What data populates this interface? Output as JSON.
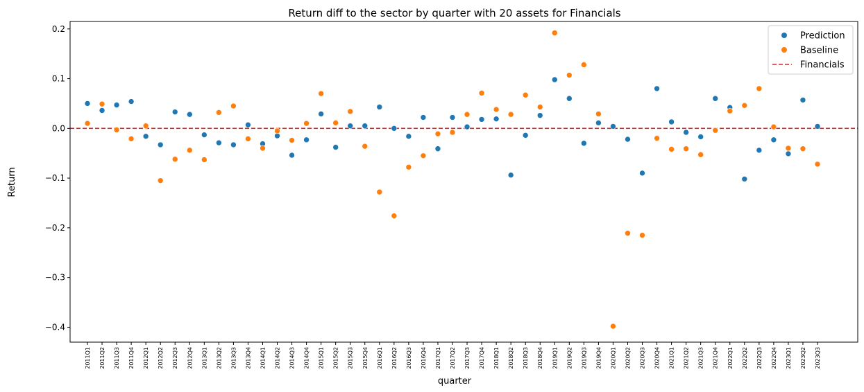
{
  "chart_data": {
    "type": "scatter",
    "title": "Return diff to the sector by quarter with 20 assets for Financials",
    "xlabel": "quarter",
    "ylabel": "Return",
    "ylim": [
      -0.43,
      0.215
    ],
    "yticks": [
      -0.4,
      -0.3,
      -0.2,
      -0.1,
      0.0,
      0.1,
      0.2
    ],
    "ytick_labels": [
      "−0.4",
      "−0.3",
      "−0.2",
      "−0.1",
      "0.0",
      "0.1",
      "0.2"
    ],
    "grid": false,
    "legend_position": "top-right",
    "categories": [
      "2011Q1",
      "2011Q2",
      "2011Q3",
      "2011Q4",
      "2012Q1",
      "2012Q2",
      "2012Q3",
      "2012Q4",
      "2013Q1",
      "2013Q2",
      "2013Q3",
      "2013Q4",
      "2014Q1",
      "2014Q2",
      "2014Q3",
      "2014Q4",
      "2015Q1",
      "2015Q2",
      "2015Q3",
      "2015Q4",
      "2016Q1",
      "2016Q2",
      "2016Q3",
      "2016Q4",
      "2017Q1",
      "2017Q2",
      "2017Q3",
      "2017Q4",
      "2018Q1",
      "2018Q2",
      "2018Q3",
      "2018Q4",
      "2019Q1",
      "2019Q2",
      "2019Q3",
      "2019Q4",
      "2020Q1",
      "2020Q2",
      "2020Q3",
      "2020Q4",
      "2021Q1",
      "2021Q2",
      "2021Q3",
      "2021Q4",
      "2022Q1",
      "2022Q2",
      "2022Q3",
      "2022Q4",
      "2023Q1",
      "2023Q2",
      "2023Q3"
    ],
    "series": [
      {
        "name": "Prediction",
        "color": "#1f77b4",
        "values": [
          0.05,
          0.036,
          0.047,
          0.054,
          -0.016,
          -0.033,
          0.033,
          0.028,
          -0.013,
          -0.029,
          -0.033,
          0.007,
          -0.031,
          -0.015,
          -0.054,
          -0.023,
          0.029,
          -0.038,
          0.005,
          0.005,
          0.043,
          0.0,
          -0.016,
          0.022,
          -0.041,
          0.022,
          0.003,
          0.018,
          0.019,
          -0.094,
          -0.014,
          0.026,
          0.098,
          0.06,
          -0.03,
          0.011,
          0.004,
          -0.022,
          -0.09,
          0.08,
          0.013,
          -0.008,
          -0.017,
          0.06,
          0.042,
          -0.102,
          -0.044,
          -0.023,
          -0.051,
          0.057,
          0.004
        ]
      },
      {
        "name": "Baseline",
        "color": "#ff7f0e",
        "values": [
          0.01,
          0.049,
          -0.003,
          -0.021,
          0.005,
          -0.105,
          -0.062,
          -0.044,
          -0.063,
          0.032,
          0.045,
          -0.021,
          -0.04,
          -0.005,
          -0.024,
          0.01,
          0.07,
          0.011,
          0.034,
          -0.036,
          -0.128,
          -0.176,
          -0.078,
          -0.055,
          -0.011,
          -0.008,
          0.028,
          0.071,
          0.038,
          0.028,
          0.067,
          0.043,
          0.192,
          0.107,
          0.128,
          0.029,
          -0.398,
          -0.211,
          -0.215,
          -0.02,
          -0.042,
          -0.041,
          -0.053,
          -0.004,
          0.035,
          0.046,
          0.08,
          0.003,
          -0.04,
          -0.041,
          -0.072
        ]
      }
    ],
    "reference_line": {
      "name": "Financials",
      "y": 0.0,
      "color": "#d62728",
      "style": "dashed"
    }
  }
}
